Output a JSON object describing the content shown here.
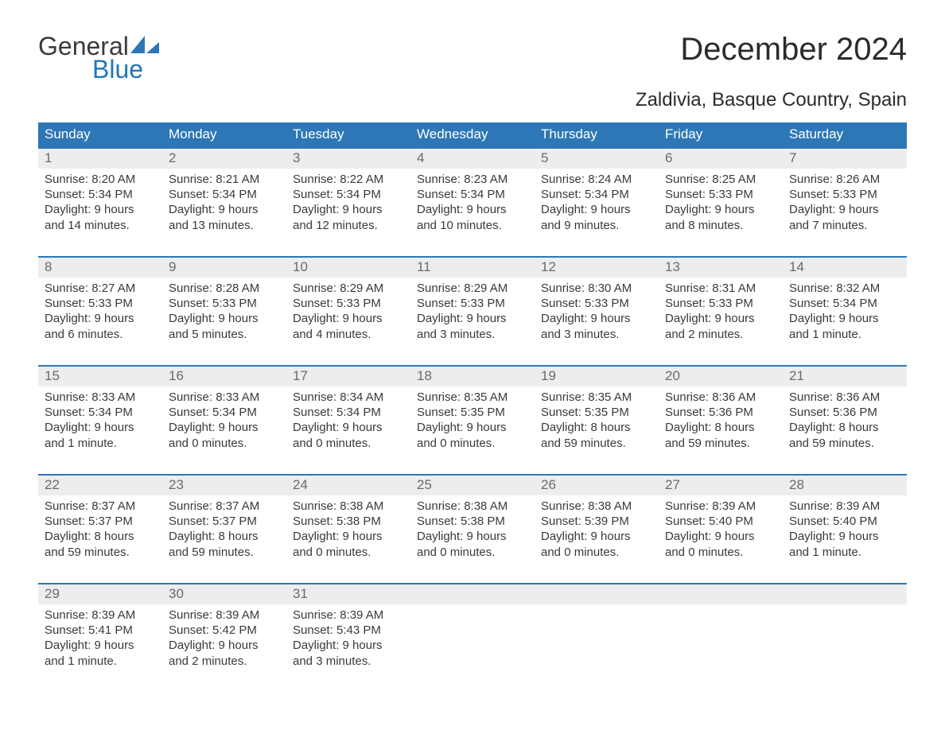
{
  "logo": {
    "general": "General",
    "blue": "Blue"
  },
  "title": "December 2024",
  "subtitle": "Zaldivia, Basque Country, Spain",
  "colors": {
    "header_bg": "#2d77b6",
    "header_text": "#ffffff",
    "row_accent": "#2d77b6",
    "daynum_bg": "#ededed",
    "daynum_text": "#6b6b6b",
    "body_text": "#3a3a3a",
    "logo_blue": "#2176b8"
  },
  "days_of_week": [
    "Sunday",
    "Monday",
    "Tuesday",
    "Wednesday",
    "Thursday",
    "Friday",
    "Saturday"
  ],
  "weeks": [
    [
      {
        "n": "1",
        "sunrise": "Sunrise: 8:20 AM",
        "sunset": "Sunset: 5:34 PM",
        "dl1": "Daylight: 9 hours",
        "dl2": "and 14 minutes."
      },
      {
        "n": "2",
        "sunrise": "Sunrise: 8:21 AM",
        "sunset": "Sunset: 5:34 PM",
        "dl1": "Daylight: 9 hours",
        "dl2": "and 13 minutes."
      },
      {
        "n": "3",
        "sunrise": "Sunrise: 8:22 AM",
        "sunset": "Sunset: 5:34 PM",
        "dl1": "Daylight: 9 hours",
        "dl2": "and 12 minutes."
      },
      {
        "n": "4",
        "sunrise": "Sunrise: 8:23 AM",
        "sunset": "Sunset: 5:34 PM",
        "dl1": "Daylight: 9 hours",
        "dl2": "and 10 minutes."
      },
      {
        "n": "5",
        "sunrise": "Sunrise: 8:24 AM",
        "sunset": "Sunset: 5:34 PM",
        "dl1": "Daylight: 9 hours",
        "dl2": "and 9 minutes."
      },
      {
        "n": "6",
        "sunrise": "Sunrise: 8:25 AM",
        "sunset": "Sunset: 5:33 PM",
        "dl1": "Daylight: 9 hours",
        "dl2": "and 8 minutes."
      },
      {
        "n": "7",
        "sunrise": "Sunrise: 8:26 AM",
        "sunset": "Sunset: 5:33 PM",
        "dl1": "Daylight: 9 hours",
        "dl2": "and 7 minutes."
      }
    ],
    [
      {
        "n": "8",
        "sunrise": "Sunrise: 8:27 AM",
        "sunset": "Sunset: 5:33 PM",
        "dl1": "Daylight: 9 hours",
        "dl2": "and 6 minutes."
      },
      {
        "n": "9",
        "sunrise": "Sunrise: 8:28 AM",
        "sunset": "Sunset: 5:33 PM",
        "dl1": "Daylight: 9 hours",
        "dl2": "and 5 minutes."
      },
      {
        "n": "10",
        "sunrise": "Sunrise: 8:29 AM",
        "sunset": "Sunset: 5:33 PM",
        "dl1": "Daylight: 9 hours",
        "dl2": "and 4 minutes."
      },
      {
        "n": "11",
        "sunrise": "Sunrise: 8:29 AM",
        "sunset": "Sunset: 5:33 PM",
        "dl1": "Daylight: 9 hours",
        "dl2": "and 3 minutes."
      },
      {
        "n": "12",
        "sunrise": "Sunrise: 8:30 AM",
        "sunset": "Sunset: 5:33 PM",
        "dl1": "Daylight: 9 hours",
        "dl2": "and 3 minutes."
      },
      {
        "n": "13",
        "sunrise": "Sunrise: 8:31 AM",
        "sunset": "Sunset: 5:33 PM",
        "dl1": "Daylight: 9 hours",
        "dl2": "and 2 minutes."
      },
      {
        "n": "14",
        "sunrise": "Sunrise: 8:32 AM",
        "sunset": "Sunset: 5:34 PM",
        "dl1": "Daylight: 9 hours",
        "dl2": "and 1 minute."
      }
    ],
    [
      {
        "n": "15",
        "sunrise": "Sunrise: 8:33 AM",
        "sunset": "Sunset: 5:34 PM",
        "dl1": "Daylight: 9 hours",
        "dl2": "and 1 minute."
      },
      {
        "n": "16",
        "sunrise": "Sunrise: 8:33 AM",
        "sunset": "Sunset: 5:34 PM",
        "dl1": "Daylight: 9 hours",
        "dl2": "and 0 minutes."
      },
      {
        "n": "17",
        "sunrise": "Sunrise: 8:34 AM",
        "sunset": "Sunset: 5:34 PM",
        "dl1": "Daylight: 9 hours",
        "dl2": "and 0 minutes."
      },
      {
        "n": "18",
        "sunrise": "Sunrise: 8:35 AM",
        "sunset": "Sunset: 5:35 PM",
        "dl1": "Daylight: 9 hours",
        "dl2": "and 0 minutes."
      },
      {
        "n": "19",
        "sunrise": "Sunrise: 8:35 AM",
        "sunset": "Sunset: 5:35 PM",
        "dl1": "Daylight: 8 hours",
        "dl2": "and 59 minutes."
      },
      {
        "n": "20",
        "sunrise": "Sunrise: 8:36 AM",
        "sunset": "Sunset: 5:36 PM",
        "dl1": "Daylight: 8 hours",
        "dl2": "and 59 minutes."
      },
      {
        "n": "21",
        "sunrise": "Sunrise: 8:36 AM",
        "sunset": "Sunset: 5:36 PM",
        "dl1": "Daylight: 8 hours",
        "dl2": "and 59 minutes."
      }
    ],
    [
      {
        "n": "22",
        "sunrise": "Sunrise: 8:37 AM",
        "sunset": "Sunset: 5:37 PM",
        "dl1": "Daylight: 8 hours",
        "dl2": "and 59 minutes."
      },
      {
        "n": "23",
        "sunrise": "Sunrise: 8:37 AM",
        "sunset": "Sunset: 5:37 PM",
        "dl1": "Daylight: 8 hours",
        "dl2": "and 59 minutes."
      },
      {
        "n": "24",
        "sunrise": "Sunrise: 8:38 AM",
        "sunset": "Sunset: 5:38 PM",
        "dl1": "Daylight: 9 hours",
        "dl2": "and 0 minutes."
      },
      {
        "n": "25",
        "sunrise": "Sunrise: 8:38 AM",
        "sunset": "Sunset: 5:38 PM",
        "dl1": "Daylight: 9 hours",
        "dl2": "and 0 minutes."
      },
      {
        "n": "26",
        "sunrise": "Sunrise: 8:38 AM",
        "sunset": "Sunset: 5:39 PM",
        "dl1": "Daylight: 9 hours",
        "dl2": "and 0 minutes."
      },
      {
        "n": "27",
        "sunrise": "Sunrise: 8:39 AM",
        "sunset": "Sunset: 5:40 PM",
        "dl1": "Daylight: 9 hours",
        "dl2": "and 0 minutes."
      },
      {
        "n": "28",
        "sunrise": "Sunrise: 8:39 AM",
        "sunset": "Sunset: 5:40 PM",
        "dl1": "Daylight: 9 hours",
        "dl2": "and 1 minute."
      }
    ],
    [
      {
        "n": "29",
        "sunrise": "Sunrise: 8:39 AM",
        "sunset": "Sunset: 5:41 PM",
        "dl1": "Daylight: 9 hours",
        "dl2": "and 1 minute."
      },
      {
        "n": "30",
        "sunrise": "Sunrise: 8:39 AM",
        "sunset": "Sunset: 5:42 PM",
        "dl1": "Daylight: 9 hours",
        "dl2": "and 2 minutes."
      },
      {
        "n": "31",
        "sunrise": "Sunrise: 8:39 AM",
        "sunset": "Sunset: 5:43 PM",
        "dl1": "Daylight: 9 hours",
        "dl2": "and 3 minutes."
      },
      {
        "n": "",
        "sunrise": "",
        "sunset": "",
        "dl1": "",
        "dl2": ""
      },
      {
        "n": "",
        "sunrise": "",
        "sunset": "",
        "dl1": "",
        "dl2": ""
      },
      {
        "n": "",
        "sunrise": "",
        "sunset": "",
        "dl1": "",
        "dl2": ""
      },
      {
        "n": "",
        "sunrise": "",
        "sunset": "",
        "dl1": "",
        "dl2": ""
      }
    ]
  ]
}
